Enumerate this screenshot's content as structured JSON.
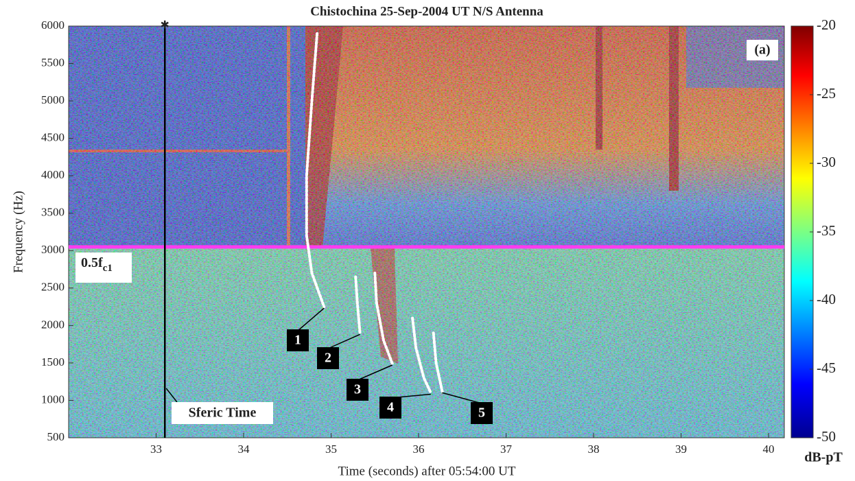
{
  "chart_data": {
    "type": "spectrogram",
    "title": "Chistochina 25-Sep-2004 UT   N/S Antenna",
    "x_label": "Time (seconds) after 05:54:00 UT",
    "y_label": "Frequency (Hz)",
    "xlim": [
      32.0,
      40.18
    ],
    "ylim": [
      500,
      6000
    ],
    "xticks": [
      33,
      34,
      35,
      36,
      37,
      38,
      39,
      40
    ],
    "yticks": [
      500,
      1000,
      1500,
      2000,
      2500,
      3000,
      3500,
      4000,
      4500,
      5000,
      5500,
      6000
    ],
    "colorbar": {
      "label": "dB-pT",
      "lim": [
        -50,
        -20
      ],
      "ticks": [
        -20,
        -25,
        -30,
        -35,
        -40,
        -45,
        -50
      ]
    },
    "panel_label": "(a)",
    "sferic_time": 33.1,
    "sferic_label": "Sferic Time",
    "reference_line": 3050,
    "reference_label": {
      "text": "0.5f",
      "subscript": "c1"
    },
    "traces": [
      {
        "name": "1",
        "x": [
          34.84,
          34.78,
          34.72,
          34.72,
          34.78,
          34.92
        ],
        "y": [
          5900,
          5000,
          4000,
          3200,
          2700,
          2250
        ]
      },
      {
        "name": "2",
        "x": [
          35.28,
          35.3,
          35.33
        ],
        "y": [
          2650,
          2300,
          1900
        ]
      },
      {
        "name": "3",
        "x": [
          35.5,
          35.52,
          35.6,
          35.7
        ],
        "y": [
          2700,
          2300,
          1800,
          1490
        ]
      },
      {
        "name": "4",
        "x": [
          35.93,
          35.97,
          36.06,
          36.14
        ],
        "y": [
          2100,
          1700,
          1300,
          1100
        ]
      },
      {
        "name": "5",
        "x": [
          36.17,
          36.2,
          36.27
        ],
        "y": [
          1900,
          1500,
          1120
        ]
      }
    ]
  }
}
